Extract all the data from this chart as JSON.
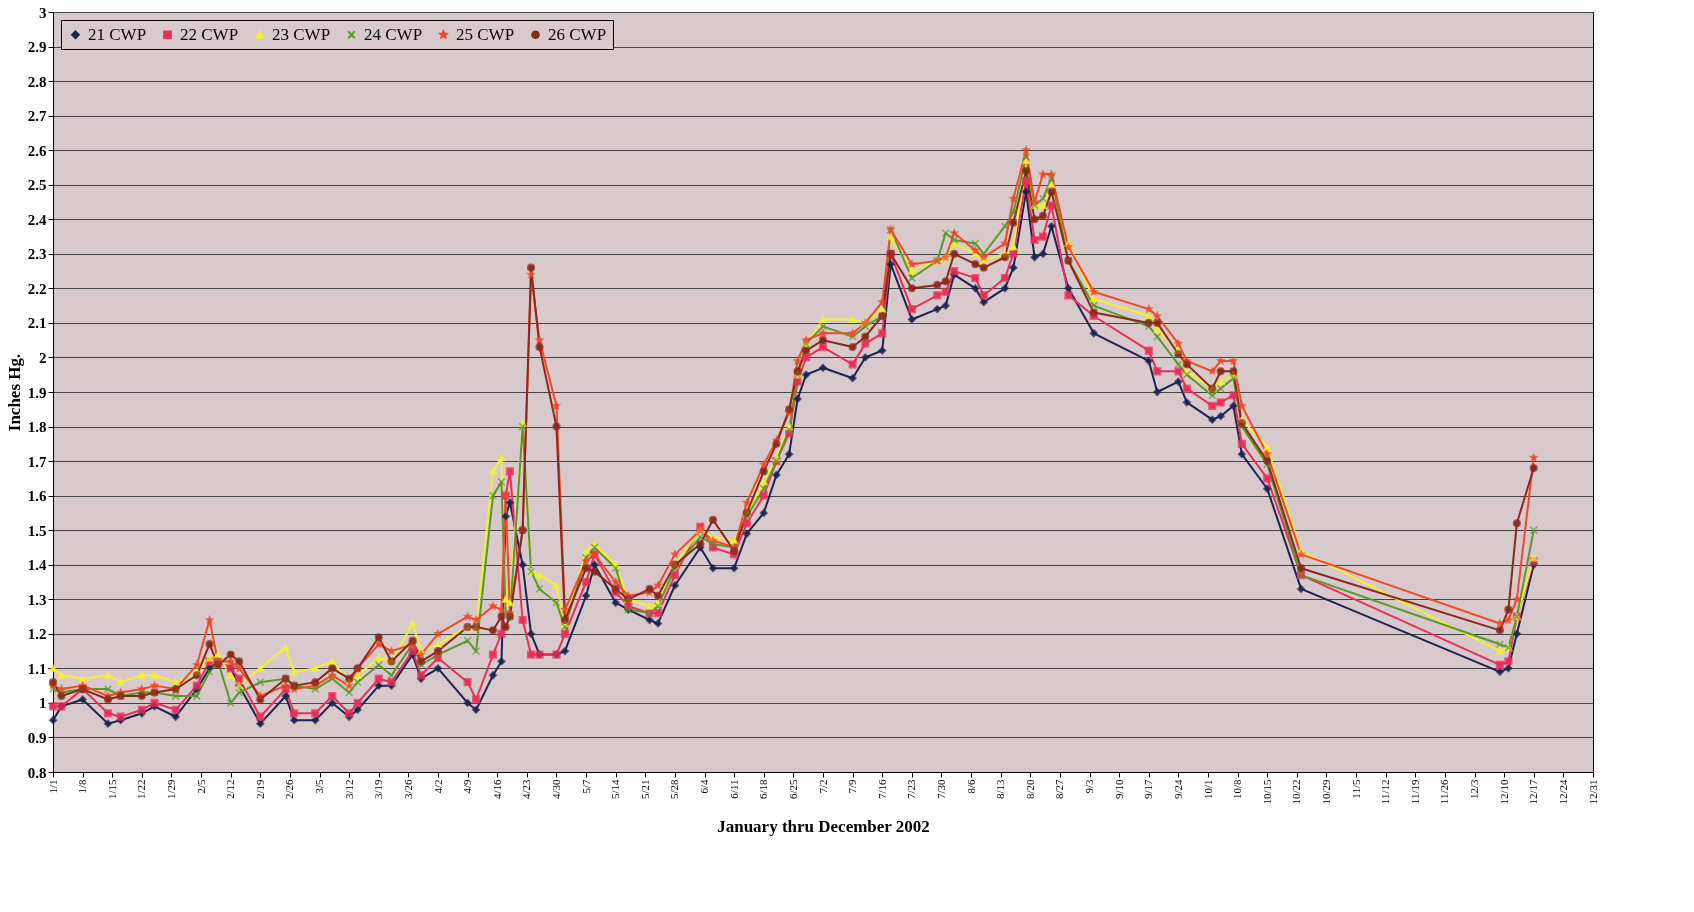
{
  "chart_data": {
    "type": "line",
    "xlabel": "January thru December 2002",
    "ylabel": "Inches Hg.",
    "x": [
      "2002-01-01",
      "2002-01-03",
      "2002-01-08",
      "2002-01-14",
      "2002-01-17",
      "2002-01-22",
      "2002-01-25",
      "2002-01-30",
      "2002-02-04",
      "2002-02-07",
      "2002-02-09",
      "2002-02-12",
      "2002-02-14",
      "2002-02-19",
      "2002-02-25",
      "2002-02-27",
      "2002-03-04",
      "2002-03-08",
      "2002-03-12",
      "2002-03-14",
      "2002-03-19",
      "2002-03-22",
      "2002-03-27",
      "2002-03-29",
      "2002-04-02",
      "2002-04-09",
      "2002-04-11",
      "2002-04-15",
      "2002-04-17",
      "2002-04-18",
      "2002-04-19",
      "2002-04-22",
      "2002-04-24",
      "2002-04-26",
      "2002-04-30",
      "2002-05-02",
      "2002-05-07",
      "2002-05-09",
      "2002-05-14",
      "2002-05-17",
      "2002-05-22",
      "2002-05-24",
      "2002-05-28",
      "2002-06-03",
      "2002-06-06",
      "2002-06-11",
      "2002-06-14",
      "2002-06-18",
      "2002-06-21",
      "2002-06-24",
      "2002-06-26",
      "2002-06-28",
      "2002-07-02",
      "2002-07-09",
      "2002-07-12",
      "2002-07-16",
      "2002-07-18",
      "2002-07-23",
      "2002-07-29",
      "2002-07-31",
      "2002-08-02",
      "2002-08-07",
      "2002-08-09",
      "2002-08-14",
      "2002-08-16",
      "2002-08-19",
      "2002-08-21",
      "2002-08-23",
      "2002-08-25",
      "2002-08-29",
      "2002-09-04",
      "2002-09-17",
      "2002-09-19",
      "2002-09-24",
      "2002-09-26",
      "2002-10-02",
      "2002-10-04",
      "2002-10-07",
      "2002-10-09",
      "2002-10-15",
      "2002-10-23",
      "2002-12-09",
      "2002-12-11",
      "2002-12-13",
      "2002-12-17"
    ],
    "series": [
      {
        "name": "21 CWP",
        "color": "#1c2450",
        "marker": "diamond",
        "values": [
          0.95,
          0.99,
          1.01,
          0.94,
          0.95,
          0.97,
          0.99,
          0.96,
          1.04,
          1.1,
          1.12,
          1.1,
          1.05,
          0.94,
          1.02,
          0.95,
          0.95,
          1.0,
          0.96,
          0.98,
          1.05,
          1.05,
          1.14,
          1.07,
          1.1,
          1.0,
          0.98,
          1.08,
          1.12,
          1.54,
          1.58,
          1.4,
          1.2,
          1.14,
          1.14,
          1.15,
          1.31,
          1.4,
          1.29,
          1.27,
          1.24,
          1.23,
          1.34,
          1.45,
          1.39,
          1.39,
          1.49,
          1.55,
          1.66,
          1.72,
          1.88,
          1.95,
          1.97,
          1.94,
          2.0,
          2.02,
          2.27,
          2.11,
          2.14,
          2.15,
          2.24,
          2.2,
          2.16,
          2.2,
          2.26,
          2.48,
          2.29,
          2.3,
          2.38,
          2.2,
          2.07,
          1.99,
          1.9,
          1.93,
          1.87,
          1.82,
          1.83,
          1.86,
          1.72,
          1.62,
          1.33,
          1.09,
          1.1,
          1.2,
          1.4
        ]
      },
      {
        "name": "22 CWP",
        "color": "#e8305a",
        "marker": "square",
        "values": [
          0.99,
          0.99,
          1.04,
          0.97,
          0.96,
          0.98,
          1.0,
          0.98,
          1.05,
          1.12,
          1.12,
          1.1,
          1.07,
          0.96,
          1.04,
          0.97,
          0.97,
          1.02,
          0.97,
          1.0,
          1.07,
          1.06,
          1.15,
          1.08,
          1.13,
          1.06,
          1.01,
          1.14,
          1.2,
          1.6,
          1.67,
          1.24,
          1.14,
          1.14,
          1.14,
          1.2,
          1.35,
          1.43,
          1.32,
          1.28,
          1.26,
          1.26,
          1.37,
          1.51,
          1.45,
          1.43,
          1.52,
          1.6,
          1.7,
          1.78,
          1.93,
          2.0,
          2.03,
          1.98,
          2.04,
          2.07,
          2.3,
          2.14,
          2.18,
          2.19,
          2.25,
          2.23,
          2.18,
          2.23,
          2.3,
          2.51,
          2.34,
          2.35,
          2.44,
          2.18,
          2.12,
          2.02,
          1.96,
          1.96,
          1.91,
          1.86,
          1.87,
          1.89,
          1.75,
          1.65,
          1.37,
          1.11,
          1.12,
          1.25,
          1.41
        ]
      },
      {
        "name": "23 CWP",
        "color": "#f2ee3a",
        "marker": "triangle",
        "values": [
          1.1,
          1.08,
          1.07,
          1.08,
          1.06,
          1.08,
          1.08,
          1.06,
          1.09,
          1.13,
          1.14,
          1.08,
          1.05,
          1.1,
          1.16,
          1.09,
          1.1,
          1.12,
          1.06,
          1.08,
          1.13,
          1.12,
          1.23,
          1.15,
          1.17,
          1.22,
          1.22,
          1.67,
          1.71,
          1.3,
          1.29,
          1.81,
          1.38,
          1.37,
          1.34,
          1.23,
          1.44,
          1.46,
          1.4,
          1.3,
          1.28,
          1.29,
          1.4,
          1.5,
          1.48,
          1.47,
          1.55,
          1.64,
          1.71,
          1.8,
          1.95,
          2.04,
          2.11,
          2.11,
          2.1,
          2.14,
          2.35,
          2.25,
          2.28,
          2.29,
          2.33,
          2.3,
          2.28,
          2.3,
          2.32,
          2.57,
          2.44,
          2.44,
          2.5,
          2.33,
          2.17,
          2.12,
          2.08,
          2.02,
          1.96,
          1.91,
          1.93,
          1.95,
          1.82,
          1.74,
          1.44,
          1.15,
          1.16,
          1.25,
          1.42
        ]
      },
      {
        "name": "24 CWP",
        "color": "#5a9a2a",
        "marker": "cross",
        "values": [
          1.04,
          1.03,
          1.04,
          1.04,
          1.02,
          1.03,
          1.03,
          1.02,
          1.02,
          1.09,
          1.12,
          1.0,
          1.03,
          1.06,
          1.07,
          1.05,
          1.04,
          1.07,
          1.03,
          1.06,
          1.11,
          1.08,
          1.17,
          1.11,
          1.14,
          1.18,
          1.15,
          1.6,
          1.64,
          1.26,
          1.25,
          1.8,
          1.38,
          1.33,
          1.29,
          1.22,
          1.42,
          1.45,
          1.39,
          1.27,
          1.26,
          1.28,
          1.39,
          1.48,
          1.46,
          1.45,
          1.54,
          1.62,
          1.7,
          1.79,
          1.95,
          2.04,
          2.09,
          2.06,
          2.09,
          2.12,
          2.37,
          2.23,
          2.28,
          2.36,
          2.34,
          2.33,
          2.3,
          2.38,
          2.42,
          2.58,
          2.44,
          2.46,
          2.52,
          2.28,
          2.15,
          2.09,
          2.06,
          1.98,
          1.95,
          1.89,
          1.91,
          1.94,
          1.8,
          1.69,
          1.37,
          1.17,
          1.16,
          1.25,
          1.5
        ]
      },
      {
        "name": "25 CWP",
        "color": "#f04a2a",
        "marker": "star",
        "values": [
          1.05,
          1.04,
          1.05,
          1.02,
          1.03,
          1.04,
          1.05,
          1.04,
          1.11,
          1.24,
          1.12,
          1.12,
          1.1,
          1.02,
          1.05,
          1.04,
          1.05,
          1.08,
          1.05,
          1.1,
          1.17,
          1.15,
          1.17,
          1.14,
          1.2,
          1.25,
          1.24,
          1.28,
          1.27,
          1.6,
          1.26,
          1.5,
          2.24,
          2.05,
          1.86,
          1.27,
          1.41,
          1.43,
          1.35,
          1.31,
          1.32,
          1.34,
          1.43,
          1.5,
          1.47,
          1.45,
          1.58,
          1.69,
          1.76,
          1.84,
          1.99,
          2.05,
          2.07,
          2.07,
          2.1,
          2.16,
          2.37,
          2.27,
          2.28,
          2.29,
          2.36,
          2.31,
          2.29,
          2.33,
          2.46,
          2.6,
          2.45,
          2.53,
          2.53,
          2.32,
          2.19,
          2.14,
          2.12,
          2.04,
          1.99,
          1.96,
          1.99,
          1.99,
          1.86,
          1.72,
          1.43,
          1.23,
          1.24,
          1.3,
          1.71
        ]
      },
      {
        "name": "26 CWP",
        "color": "#8a2a1a",
        "marker": "circle",
        "values": [
          1.06,
          1.02,
          1.04,
          1.01,
          1.02,
          1.02,
          1.03,
          1.04,
          1.08,
          1.17,
          1.11,
          1.14,
          1.12,
          1.01,
          1.07,
          1.05,
          1.06,
          1.1,
          1.07,
          1.1,
          1.19,
          1.12,
          1.18,
          1.12,
          1.15,
          1.22,
          1.22,
          1.21,
          1.25,
          1.22,
          1.25,
          1.5,
          2.26,
          2.03,
          1.8,
          1.24,
          1.39,
          1.38,
          1.33,
          1.3,
          1.33,
          1.31,
          1.4,
          1.46,
          1.53,
          1.44,
          1.55,
          1.67,
          1.75,
          1.85,
          1.96,
          2.02,
          2.05,
          2.03,
          2.06,
          2.12,
          2.3,
          2.2,
          2.21,
          2.22,
          2.3,
          2.27,
          2.26,
          2.29,
          2.39,
          2.54,
          2.4,
          2.41,
          2.48,
          2.28,
          2.13,
          2.1,
          2.1,
          2.01,
          1.98,
          1.91,
          1.96,
          1.96,
          1.81,
          1.7,
          1.39,
          1.21,
          1.27,
          1.52,
          1.68
        ]
      }
    ],
    "xlim": [
      "2002-01-01",
      "2002-12-31"
    ],
    "xticks": [
      {
        "value": "2002-01-01",
        "label": "1/1"
      },
      {
        "value": "2002-01-08",
        "label": "1/8"
      },
      {
        "value": "2002-01-15",
        "label": "1/15"
      },
      {
        "value": "2002-01-22",
        "label": "1/22"
      },
      {
        "value": "2002-01-29",
        "label": "1/29"
      },
      {
        "value": "2002-02-05",
        "label": "2/5"
      },
      {
        "value": "2002-02-12",
        "label": "2/12"
      },
      {
        "value": "2002-02-19",
        "label": "2/19"
      },
      {
        "value": "2002-02-26",
        "label": "2/26"
      },
      {
        "value": "2002-03-05",
        "label": "3/5"
      },
      {
        "value": "2002-03-12",
        "label": "3/12"
      },
      {
        "value": "2002-03-19",
        "label": "3/19"
      },
      {
        "value": "2002-03-26",
        "label": "3/26"
      },
      {
        "value": "2002-04-02",
        "label": "4/2"
      },
      {
        "value": "2002-04-09",
        "label": "4/9"
      },
      {
        "value": "2002-04-16",
        "label": "4/16"
      },
      {
        "value": "2002-04-23",
        "label": "4/23"
      },
      {
        "value": "2002-04-30",
        "label": "4/30"
      },
      {
        "value": "2002-05-07",
        "label": "5/7"
      },
      {
        "value": "2002-05-14",
        "label": "5/14"
      },
      {
        "value": "2002-05-21",
        "label": "5/21"
      },
      {
        "value": "2002-05-28",
        "label": "5/28"
      },
      {
        "value": "2002-06-04",
        "label": "6/4"
      },
      {
        "value": "2002-06-11",
        "label": "6/11"
      },
      {
        "value": "2002-06-18",
        "label": "6/18"
      },
      {
        "value": "2002-06-25",
        "label": "6/25"
      },
      {
        "value": "2002-07-02",
        "label": "7/2"
      },
      {
        "value": "2002-07-09",
        "label": "7/9"
      },
      {
        "value": "2002-07-16",
        "label": "7/16"
      },
      {
        "value": "2002-07-23",
        "label": "7/23"
      },
      {
        "value": "2002-07-30",
        "label": "7/30"
      },
      {
        "value": "2002-08-06",
        "label": "8/6"
      },
      {
        "value": "2002-08-13",
        "label": "8/13"
      },
      {
        "value": "2002-08-20",
        "label": "8/20"
      },
      {
        "value": "2002-08-27",
        "label": "8/27"
      },
      {
        "value": "2002-09-03",
        "label": "9/3"
      },
      {
        "value": "2002-09-10",
        "label": "9/10"
      },
      {
        "value": "2002-09-17",
        "label": "9/17"
      },
      {
        "value": "2002-09-24",
        "label": "9/24"
      },
      {
        "value": "2002-10-01",
        "label": "10/1"
      },
      {
        "value": "2002-10-08",
        "label": "10/8"
      },
      {
        "value": "2002-10-15",
        "label": "10/15"
      },
      {
        "value": "2002-10-22",
        "label": "10/22"
      },
      {
        "value": "2002-10-29",
        "label": "10/29"
      },
      {
        "value": "2002-11-05",
        "label": "11/5"
      },
      {
        "value": "2002-11-12",
        "label": "11/12"
      },
      {
        "value": "2002-11-19",
        "label": "11/19"
      },
      {
        "value": "2002-11-26",
        "label": "11/26"
      },
      {
        "value": "2002-12-03",
        "label": "12/3"
      },
      {
        "value": "2002-12-10",
        "label": "12/10"
      },
      {
        "value": "2002-12-17",
        "label": "12/17"
      },
      {
        "value": "2002-12-24",
        "label": "12/24"
      },
      {
        "value": "2002-12-31",
        "label": "12/31"
      }
    ],
    "ylim": [
      0.8,
      3
    ],
    "yticks": [
      0.8,
      0.9,
      1,
      1.1,
      1.2,
      1.3,
      1.4,
      1.5,
      1.6,
      1.7,
      1.8,
      1.9,
      2,
      2.1,
      2.2,
      2.3,
      2.4,
      2.5,
      2.6,
      2.7,
      2.8,
      2.9,
      3
    ],
    "grid": "y",
    "legend": "top left",
    "line_style": "solid"
  }
}
